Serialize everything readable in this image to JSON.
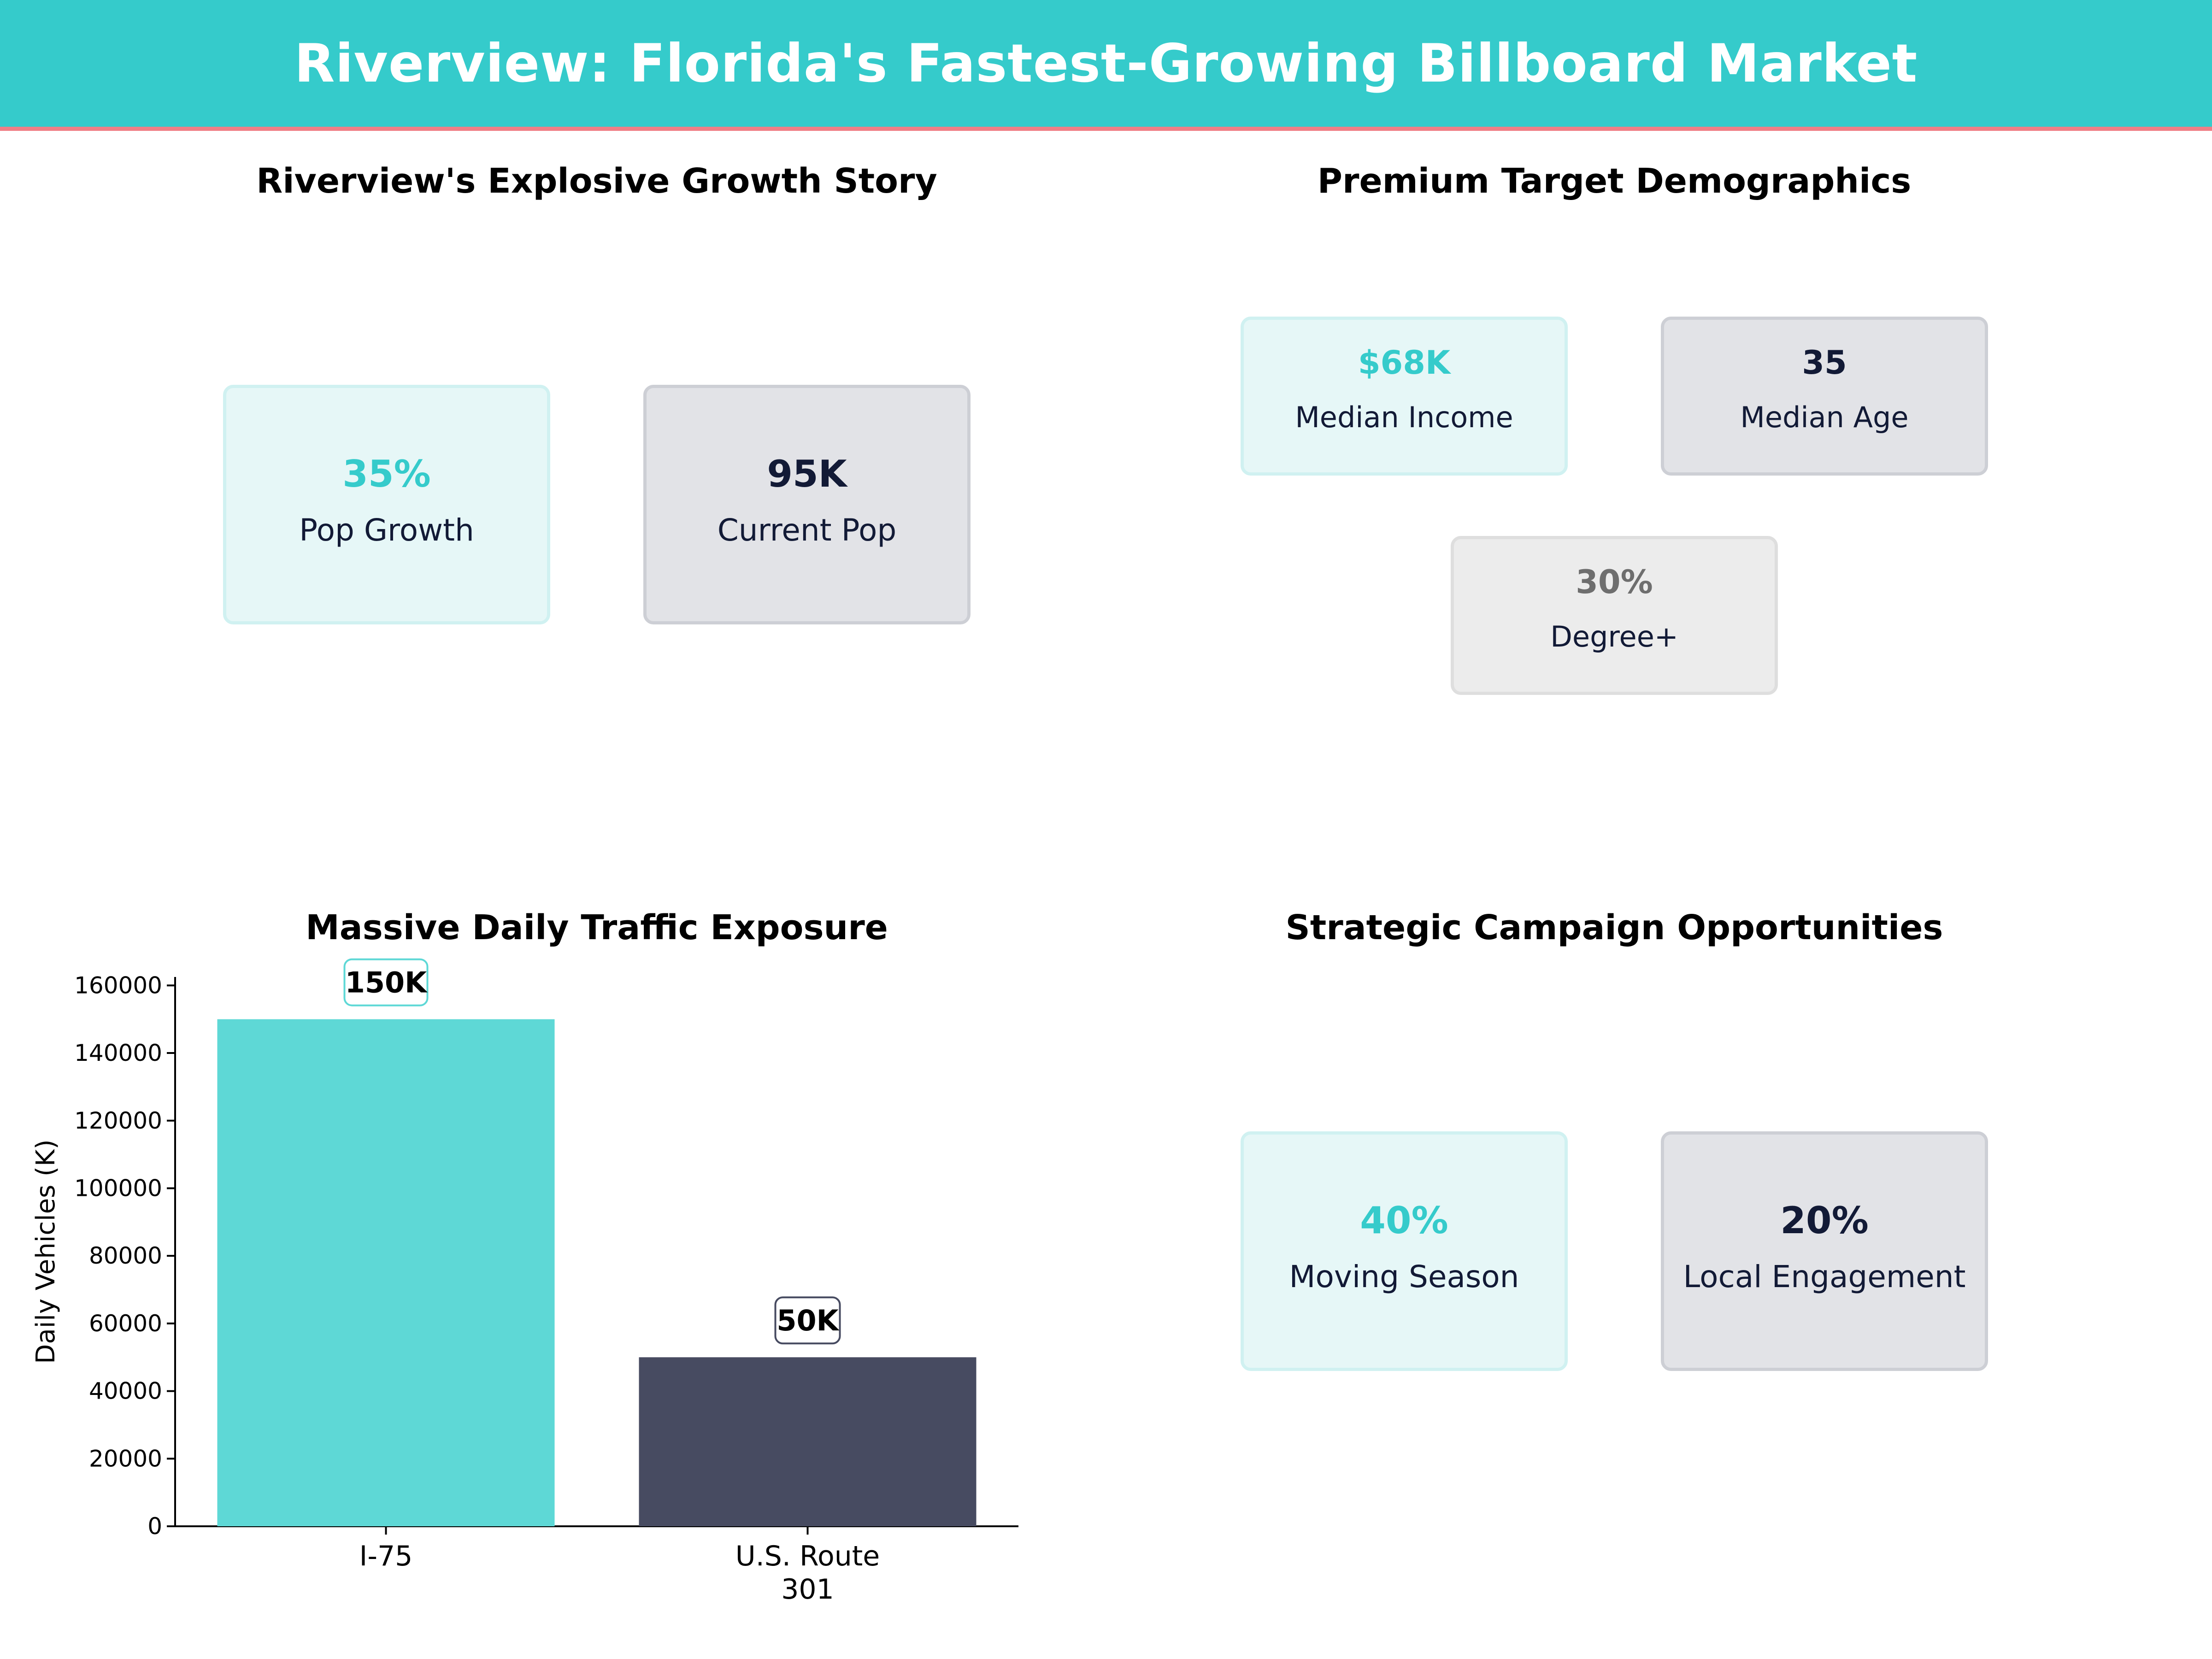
{
  "header": {
    "title": "Riverview: Florida's Fastest-Growing Billboard Market"
  },
  "colors": {
    "header_bg": "#35cbcb",
    "header_underline": "#f07f86",
    "teal_value": "#35cbcb",
    "navy_value": "#121a36",
    "gray_value": "#6e6e6e",
    "bar_teal": "#5ed8d6",
    "bar_navy": "#474b61"
  },
  "growth": {
    "title": "Riverview's Explosive Growth Story",
    "cards": [
      {
        "value": "35%",
        "label": "Pop Growth"
      },
      {
        "value": "95K",
        "label": "Current Pop"
      }
    ]
  },
  "demographics": {
    "title": "Premium Target Demographics",
    "cards": [
      {
        "value": "$68K",
        "label": "Median Income"
      },
      {
        "value": "35",
        "label": "Median Age"
      },
      {
        "value": "30%",
        "label": "Degree+"
      }
    ]
  },
  "traffic": {
    "title": "Massive Daily Traffic Exposure"
  },
  "campaign": {
    "title": "Strategic Campaign Opportunities",
    "cards": [
      {
        "value": "40%",
        "label": "Moving Season"
      },
      {
        "value": "20%",
        "label": "Local Engagement"
      }
    ]
  },
  "chart_data": {
    "type": "bar",
    "title": "Massive Daily Traffic Exposure",
    "categories": [
      "I-75",
      "U.S. Route 301"
    ],
    "category_lines": [
      [
        "I-75"
      ],
      [
        "U.S. Route",
        "301"
      ]
    ],
    "values": [
      150000,
      50000
    ],
    "data_labels": [
      "150K",
      "50K"
    ],
    "bar_colors": [
      "#5ed8d6",
      "#474b61"
    ],
    "ylabel": "Daily Vehicles (K)",
    "ylim": [
      0,
      162500
    ],
    "yticks": [
      0,
      20000,
      40000,
      60000,
      80000,
      100000,
      120000,
      140000,
      160000
    ],
    "grid": false
  }
}
